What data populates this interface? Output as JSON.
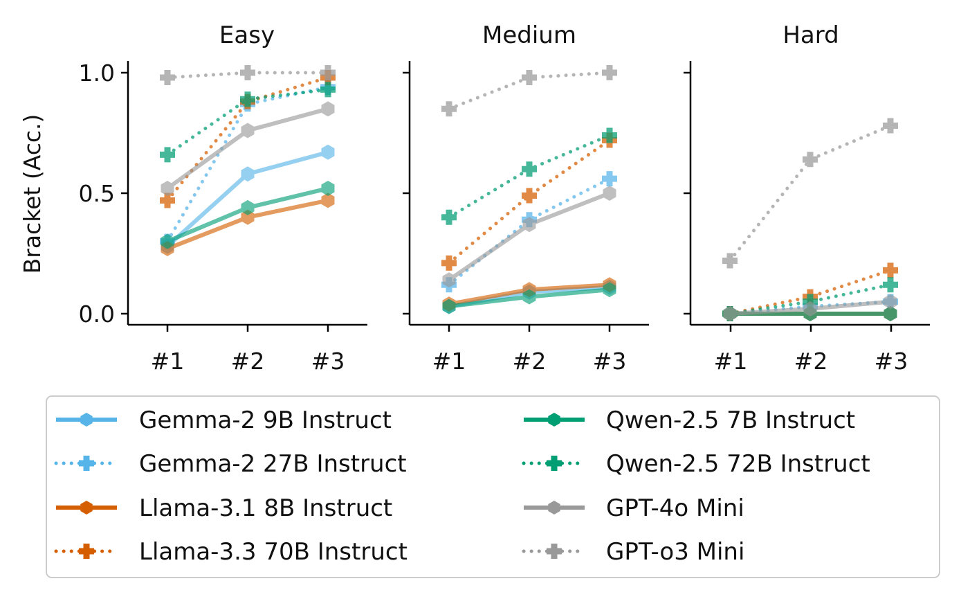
{
  "chart_data": {
    "type": "line",
    "ylabel": "Bracket (Acc.)",
    "ylim": [
      0,
      1
    ],
    "yticks": [
      "0.0",
      "0.5",
      "1.0"
    ],
    "categories": [
      "#1",
      "#2",
      "#3"
    ],
    "colors": {
      "gemma": "#56b4e9",
      "llama": "#d55e00",
      "qwen": "#009e73",
      "gpt": "#999999"
    },
    "legend": [
      "Gemma-2 9B Instruct",
      "Gemma-2 27B Instruct",
      "Llama-3.1 8B Instruct",
      "Llama-3.3 70B Instruct",
      "Qwen-2.5 7B Instruct",
      "Qwen-2.5 72B Instruct",
      "GPT-4o Mini",
      "GPT-o3 Mini"
    ],
    "panels": [
      {
        "title": "Easy",
        "series": [
          {
            "name": "Gemma-2 9B Instruct",
            "color_key": "gemma",
            "style": "solid",
            "values": [
              0.28,
              0.58,
              0.67
            ]
          },
          {
            "name": "Gemma-2 27B Instruct",
            "color_key": "gemma",
            "style": "dotted",
            "values": [
              0.3,
              0.87,
              0.94
            ]
          },
          {
            "name": "Llama-3.1 8B Instruct",
            "color_key": "llama",
            "style": "solid",
            "values": [
              0.27,
              0.4,
              0.47
            ]
          },
          {
            "name": "Llama-3.3 70B Instruct",
            "color_key": "llama",
            "style": "dotted",
            "values": [
              0.47,
              0.88,
              0.98
            ]
          },
          {
            "name": "Qwen-2.5 7B Instruct",
            "color_key": "qwen",
            "style": "solid",
            "values": [
              0.3,
              0.44,
              0.52
            ]
          },
          {
            "name": "Qwen-2.5 72B Instruct",
            "color_key": "qwen",
            "style": "dotted",
            "values": [
              0.66,
              0.89,
              0.93
            ]
          },
          {
            "name": "GPT-4o Mini",
            "color_key": "gpt",
            "style": "solid",
            "values": [
              0.52,
              0.76,
              0.85
            ]
          },
          {
            "name": "GPT-o3 Mini",
            "color_key": "gpt",
            "style": "dotted",
            "values": [
              0.98,
              1.0,
              1.0
            ]
          }
        ]
      },
      {
        "title": "Medium",
        "series": [
          {
            "name": "Gemma-2 9B Instruct",
            "color_key": "gemma",
            "style": "solid",
            "values": [
              0.03,
              0.09,
              0.11
            ]
          },
          {
            "name": "Gemma-2 27B Instruct",
            "color_key": "gemma",
            "style": "dotted",
            "values": [
              0.12,
              0.39,
              0.56
            ]
          },
          {
            "name": "Llama-3.1 8B Instruct",
            "color_key": "llama",
            "style": "solid",
            "values": [
              0.04,
              0.1,
              0.12
            ]
          },
          {
            "name": "Llama-3.3 70B Instruct",
            "color_key": "llama",
            "style": "dotted",
            "values": [
              0.21,
              0.49,
              0.72
            ]
          },
          {
            "name": "Qwen-2.5 7B Instruct",
            "color_key": "qwen",
            "style": "solid",
            "values": [
              0.03,
              0.07,
              0.1
            ]
          },
          {
            "name": "Qwen-2.5 72B Instruct",
            "color_key": "qwen",
            "style": "dotted",
            "values": [
              0.4,
              0.6,
              0.74
            ]
          },
          {
            "name": "GPT-4o Mini",
            "color_key": "gpt",
            "style": "solid",
            "values": [
              0.14,
              0.37,
              0.5
            ]
          },
          {
            "name": "GPT-o3 Mini",
            "color_key": "gpt",
            "style": "dotted",
            "values": [
              0.85,
              0.98,
              1.0
            ]
          }
        ]
      },
      {
        "title": "Hard",
        "series": [
          {
            "name": "Gemma-2 9B Instruct",
            "color_key": "gemma",
            "style": "solid",
            "values": [
              0.0,
              0.0,
              0.0
            ]
          },
          {
            "name": "Gemma-2 27B Instruct",
            "color_key": "gemma",
            "style": "dotted",
            "values": [
              0.0,
              0.03,
              0.05
            ]
          },
          {
            "name": "Llama-3.1 8B Instruct",
            "color_key": "llama",
            "style": "solid",
            "values": [
              0.0,
              0.0,
              0.0
            ]
          },
          {
            "name": "Llama-3.3 70B Instruct",
            "color_key": "llama",
            "style": "dotted",
            "values": [
              0.0,
              0.07,
              0.18
            ]
          },
          {
            "name": "Qwen-2.5 7B Instruct",
            "color_key": "qwen",
            "style": "solid",
            "values": [
              0.0,
              0.0,
              0.0
            ]
          },
          {
            "name": "Qwen-2.5 72B Instruct",
            "color_key": "qwen",
            "style": "dotted",
            "values": [
              0.0,
              0.05,
              0.12
            ]
          },
          {
            "name": "GPT-4o Mini",
            "color_key": "gpt",
            "style": "solid",
            "values": [
              0.0,
              0.02,
              0.05
            ]
          },
          {
            "name": "GPT-o3 Mini",
            "color_key": "gpt",
            "style": "dotted",
            "values": [
              0.22,
              0.64,
              0.78
            ]
          }
        ]
      }
    ]
  }
}
